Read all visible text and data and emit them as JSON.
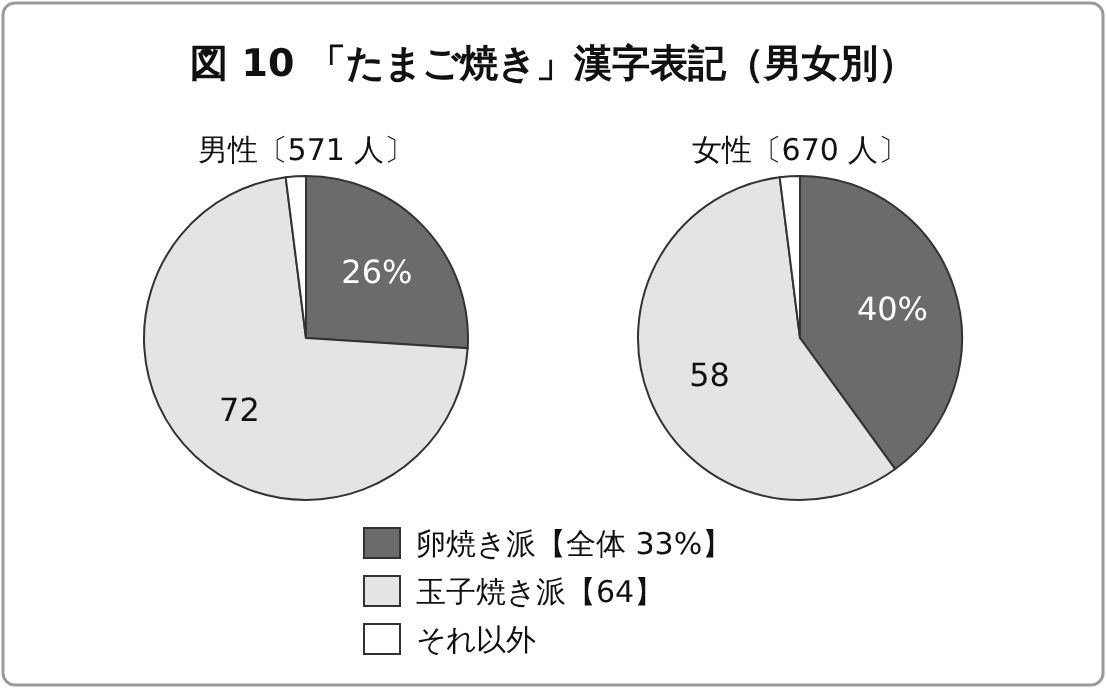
{
  "chart_data": [
    {
      "type": "pie",
      "title": "図 10 「たまご焼き」漢字表記（男女別）",
      "subtitle": "男性〔571 人〕",
      "categories": [
        "卵焼き派【全体 33%】",
        "玉子焼き派【64】",
        "それ以外"
      ],
      "values": [
        26,
        72,
        2
      ],
      "colors": [
        "#6b6b6b",
        "#e4e4e4",
        "#ffffff"
      ],
      "value_labels": [
        "26%",
        "72",
        null
      ],
      "legend": "bottom"
    },
    {
      "type": "pie",
      "subtitle": "女性〔670 人〕",
      "categories": [
        null,
        null,
        null
      ],
      "values": [
        40,
        58,
        2
      ],
      "colors": [
        "#6b6b6b",
        "#e4e4e4",
        "#ffffff"
      ],
      "value_labels": [
        "40%",
        "58",
        null
      ]
    }
  ]
}
